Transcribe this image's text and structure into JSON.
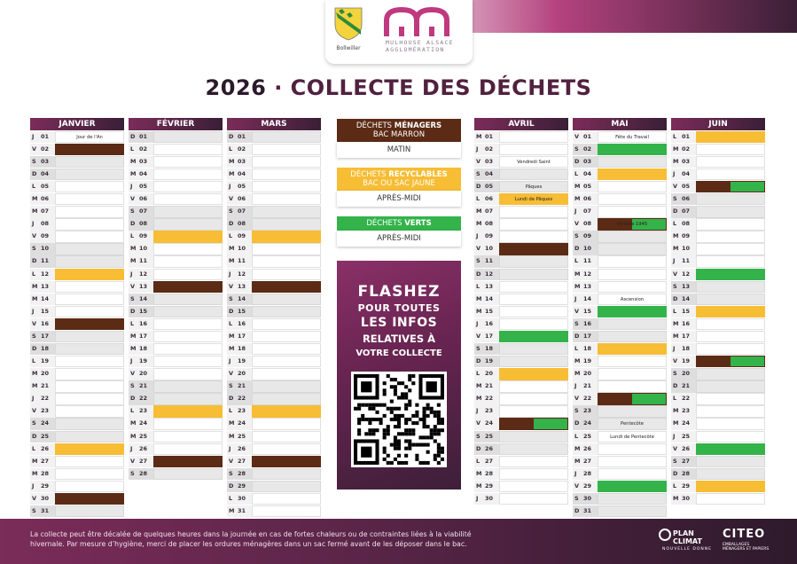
{
  "header": {
    "commune": "Bollwiller",
    "agglo_line1": "MULHOUSE ALSACE",
    "agglo_line2": "AGGLOMÉRATION",
    "year": "2026",
    "title": "· COLLECTE DES DÉCHETS"
  },
  "colors": {
    "menagers": "#5c2b15",
    "recyclables": "#f6bd35",
    "verts": "#33b34a",
    "brand": "#51213f"
  },
  "legend": {
    "menagers": {
      "prefix": "DÉCHETS ",
      "bold": "MÉNAGERS",
      "sub": "BAC MARRON",
      "time": "MATIN"
    },
    "recyclables": {
      "prefix": "DÉCHETS ",
      "bold": "RECYCLABLES",
      "sub": "BAC OU SAC JAUNE",
      "time": "APRÈS-MIDI"
    },
    "verts": {
      "prefix": "DÉCHETS ",
      "bold": "VERTS",
      "time": "APRÈS-MIDI"
    }
  },
  "flash": {
    "line1": "FLASHEZ",
    "line2": "POUR TOUTES",
    "line3": "LES INFOS",
    "line4": "RELATIVES À",
    "line5": "VOTRE COLLECTE"
  },
  "footer": {
    "line1": "La collecte peut être décalée de quelques heures dans la journée en cas de fortes chaleurs ou de contraintes liées à la viabilité",
    "line2": "hivernale. Par mesure d’hygiène, merci de placer les ordures ménagères dans un sac fermé avant de les déposer dans le bac.",
    "plan_line1": "PLAN",
    "plan_line2": "CLIMAT",
    "plan_sub": "NOUVELLE DONNE",
    "citeo": "CITEO",
    "citeo_sub1": "EMBALLAGES",
    "citeo_sub2": "MÉNAGERS ET PAPIERS"
  },
  "months": [
    {
      "name": "JANVIER",
      "days": [
        {
          "dl": "J",
          "dn": "01",
          "h": "Jour de l'An"
        },
        {
          "dl": "V",
          "dn": "02",
          "c": "brown"
        },
        {
          "dl": "S",
          "dn": "03"
        },
        {
          "dl": "D",
          "dn": "04"
        },
        {
          "dl": "L",
          "dn": "05"
        },
        {
          "dl": "M",
          "dn": "06"
        },
        {
          "dl": "M",
          "dn": "07"
        },
        {
          "dl": "J",
          "dn": "08"
        },
        {
          "dl": "V",
          "dn": "09"
        },
        {
          "dl": "S",
          "dn": "10"
        },
        {
          "dl": "D",
          "dn": "11"
        },
        {
          "dl": "L",
          "dn": "12",
          "c": "yellow"
        },
        {
          "dl": "M",
          "dn": "13"
        },
        {
          "dl": "M",
          "dn": "14"
        },
        {
          "dl": "J",
          "dn": "15"
        },
        {
          "dl": "V",
          "dn": "16",
          "c": "brown"
        },
        {
          "dl": "S",
          "dn": "17"
        },
        {
          "dl": "D",
          "dn": "18"
        },
        {
          "dl": "L",
          "dn": "19"
        },
        {
          "dl": "M",
          "dn": "20"
        },
        {
          "dl": "M",
          "dn": "21"
        },
        {
          "dl": "J",
          "dn": "22"
        },
        {
          "dl": "V",
          "dn": "23"
        },
        {
          "dl": "S",
          "dn": "24"
        },
        {
          "dl": "D",
          "dn": "25"
        },
        {
          "dl": "L",
          "dn": "26",
          "c": "yellow"
        },
        {
          "dl": "M",
          "dn": "27"
        },
        {
          "dl": "M",
          "dn": "28"
        },
        {
          "dl": "J",
          "dn": "29"
        },
        {
          "dl": "V",
          "dn": "30",
          "c": "brown"
        },
        {
          "dl": "S",
          "dn": "31"
        }
      ]
    },
    {
      "name": "FÉVRIER",
      "days": [
        {
          "dl": "D",
          "dn": "01"
        },
        {
          "dl": "L",
          "dn": "02"
        },
        {
          "dl": "M",
          "dn": "03"
        },
        {
          "dl": "M",
          "dn": "04"
        },
        {
          "dl": "J",
          "dn": "05"
        },
        {
          "dl": "V",
          "dn": "06"
        },
        {
          "dl": "S",
          "dn": "07"
        },
        {
          "dl": "D",
          "dn": "08"
        },
        {
          "dl": "L",
          "dn": "09",
          "c": "yellow"
        },
        {
          "dl": "M",
          "dn": "10"
        },
        {
          "dl": "M",
          "dn": "11"
        },
        {
          "dl": "J",
          "dn": "12"
        },
        {
          "dl": "V",
          "dn": "13",
          "c": "brown"
        },
        {
          "dl": "S",
          "dn": "14"
        },
        {
          "dl": "D",
          "dn": "15"
        },
        {
          "dl": "L",
          "dn": "16"
        },
        {
          "dl": "M",
          "dn": "17"
        },
        {
          "dl": "M",
          "dn": "18"
        },
        {
          "dl": "J",
          "dn": "19"
        },
        {
          "dl": "V",
          "dn": "20"
        },
        {
          "dl": "S",
          "dn": "21"
        },
        {
          "dl": "D",
          "dn": "22"
        },
        {
          "dl": "L",
          "dn": "23",
          "c": "yellow"
        },
        {
          "dl": "M",
          "dn": "24"
        },
        {
          "dl": "M",
          "dn": "25"
        },
        {
          "dl": "J",
          "dn": "26"
        },
        {
          "dl": "V",
          "dn": "27",
          "c": "brown"
        },
        {
          "dl": "S",
          "dn": "28"
        }
      ]
    },
    {
      "name": "MARS",
      "days": [
        {
          "dl": "D",
          "dn": "01"
        },
        {
          "dl": "L",
          "dn": "02"
        },
        {
          "dl": "M",
          "dn": "03"
        },
        {
          "dl": "M",
          "dn": "04"
        },
        {
          "dl": "J",
          "dn": "05"
        },
        {
          "dl": "V",
          "dn": "06"
        },
        {
          "dl": "S",
          "dn": "07"
        },
        {
          "dl": "D",
          "dn": "08"
        },
        {
          "dl": "L",
          "dn": "09",
          "c": "yellow"
        },
        {
          "dl": "M",
          "dn": "10"
        },
        {
          "dl": "M",
          "dn": "11"
        },
        {
          "dl": "J",
          "dn": "12"
        },
        {
          "dl": "V",
          "dn": "13",
          "c": "brown"
        },
        {
          "dl": "S",
          "dn": "14"
        },
        {
          "dl": "D",
          "dn": "15"
        },
        {
          "dl": "L",
          "dn": "16"
        },
        {
          "dl": "M",
          "dn": "17"
        },
        {
          "dl": "M",
          "dn": "18"
        },
        {
          "dl": "J",
          "dn": "19"
        },
        {
          "dl": "V",
          "dn": "20"
        },
        {
          "dl": "S",
          "dn": "21"
        },
        {
          "dl": "D",
          "dn": "22"
        },
        {
          "dl": "L",
          "dn": "23",
          "c": "yellow"
        },
        {
          "dl": "M",
          "dn": "24"
        },
        {
          "dl": "M",
          "dn": "25"
        },
        {
          "dl": "J",
          "dn": "26"
        },
        {
          "dl": "V",
          "dn": "27",
          "c": "brown"
        },
        {
          "dl": "S",
          "dn": "28"
        },
        {
          "dl": "D",
          "dn": "29"
        },
        {
          "dl": "L",
          "dn": "30"
        },
        {
          "dl": "M",
          "dn": "31"
        }
      ]
    },
    {
      "name": "AVRIL",
      "days": [
        {
          "dl": "M",
          "dn": "01"
        },
        {
          "dl": "J",
          "dn": "02"
        },
        {
          "dl": "V",
          "dn": "03",
          "h": "Vendredi Saint"
        },
        {
          "dl": "S",
          "dn": "04"
        },
        {
          "dl": "D",
          "dn": "05",
          "h": "Pâques"
        },
        {
          "dl": "L",
          "dn": "06",
          "h": "Lundi de Pâques",
          "c": "yellow"
        },
        {
          "dl": "M",
          "dn": "07"
        },
        {
          "dl": "M",
          "dn": "08"
        },
        {
          "dl": "J",
          "dn": "09"
        },
        {
          "dl": "V",
          "dn": "10",
          "c": "brown"
        },
        {
          "dl": "S",
          "dn": "11"
        },
        {
          "dl": "D",
          "dn": "12"
        },
        {
          "dl": "L",
          "dn": "13"
        },
        {
          "dl": "M",
          "dn": "14"
        },
        {
          "dl": "M",
          "dn": "15"
        },
        {
          "dl": "J",
          "dn": "16"
        },
        {
          "dl": "V",
          "dn": "17",
          "c": "green"
        },
        {
          "dl": "S",
          "dn": "18"
        },
        {
          "dl": "D",
          "dn": "19"
        },
        {
          "dl": "L",
          "dn": "20",
          "c": "yellow"
        },
        {
          "dl": "M",
          "dn": "21"
        },
        {
          "dl": "M",
          "dn": "22"
        },
        {
          "dl": "J",
          "dn": "23"
        },
        {
          "dl": "V",
          "dn": "24",
          "c": "split"
        },
        {
          "dl": "S",
          "dn": "25"
        },
        {
          "dl": "D",
          "dn": "26"
        },
        {
          "dl": "L",
          "dn": "27"
        },
        {
          "dl": "M",
          "dn": "28"
        },
        {
          "dl": "M",
          "dn": "29"
        },
        {
          "dl": "J",
          "dn": "30"
        }
      ]
    },
    {
      "name": "MAI",
      "days": [
        {
          "dl": "V",
          "dn": "01",
          "h": "Fête du Travail"
        },
        {
          "dl": "S",
          "dn": "02",
          "c": "green"
        },
        {
          "dl": "D",
          "dn": "03"
        },
        {
          "dl": "L",
          "dn": "04",
          "c": "yellow"
        },
        {
          "dl": "M",
          "dn": "05"
        },
        {
          "dl": "M",
          "dn": "06"
        },
        {
          "dl": "J",
          "dn": "07"
        },
        {
          "dl": "V",
          "dn": "08",
          "h": "Victoire 1945",
          "c": "split"
        },
        {
          "dl": "S",
          "dn": "09"
        },
        {
          "dl": "D",
          "dn": "10"
        },
        {
          "dl": "L",
          "dn": "11"
        },
        {
          "dl": "M",
          "dn": "12"
        },
        {
          "dl": "M",
          "dn": "13"
        },
        {
          "dl": "J",
          "dn": "14",
          "h": "Ascension"
        },
        {
          "dl": "V",
          "dn": "15",
          "c": "green"
        },
        {
          "dl": "S",
          "dn": "16"
        },
        {
          "dl": "D",
          "dn": "17"
        },
        {
          "dl": "L",
          "dn": "18",
          "c": "yellow"
        },
        {
          "dl": "M",
          "dn": "19"
        },
        {
          "dl": "M",
          "dn": "20"
        },
        {
          "dl": "J",
          "dn": "21"
        },
        {
          "dl": "V",
          "dn": "22",
          "c": "split"
        },
        {
          "dl": "S",
          "dn": "23"
        },
        {
          "dl": "D",
          "dn": "24",
          "h": "Pentecôte"
        },
        {
          "dl": "L",
          "dn": "25",
          "h": "Lundi de Pentecôte"
        },
        {
          "dl": "M",
          "dn": "26"
        },
        {
          "dl": "M",
          "dn": "27"
        },
        {
          "dl": "J",
          "dn": "28"
        },
        {
          "dl": "V",
          "dn": "29",
          "c": "green"
        },
        {
          "dl": "S",
          "dn": "30"
        },
        {
          "dl": "D",
          "dn": "31"
        }
      ]
    },
    {
      "name": "JUIN",
      "days": [
        {
          "dl": "L",
          "dn": "01",
          "c": "yellow"
        },
        {
          "dl": "M",
          "dn": "02"
        },
        {
          "dl": "M",
          "dn": "03"
        },
        {
          "dl": "J",
          "dn": "04"
        },
        {
          "dl": "V",
          "dn": "05",
          "c": "split"
        },
        {
          "dl": "S",
          "dn": "06"
        },
        {
          "dl": "D",
          "dn": "07"
        },
        {
          "dl": "L",
          "dn": "08"
        },
        {
          "dl": "M",
          "dn": "09"
        },
        {
          "dl": "M",
          "dn": "10"
        },
        {
          "dl": "J",
          "dn": "11"
        },
        {
          "dl": "V",
          "dn": "12",
          "c": "green"
        },
        {
          "dl": "S",
          "dn": "13"
        },
        {
          "dl": "D",
          "dn": "14"
        },
        {
          "dl": "L",
          "dn": "15",
          "c": "yellow"
        },
        {
          "dl": "M",
          "dn": "16"
        },
        {
          "dl": "M",
          "dn": "17"
        },
        {
          "dl": "J",
          "dn": "18"
        },
        {
          "dl": "V",
          "dn": "19",
          "c": "split"
        },
        {
          "dl": "S",
          "dn": "20"
        },
        {
          "dl": "D",
          "dn": "21"
        },
        {
          "dl": "L",
          "dn": "22"
        },
        {
          "dl": "M",
          "dn": "23"
        },
        {
          "dl": "M",
          "dn": "24"
        },
        {
          "dl": "J",
          "dn": "25"
        },
        {
          "dl": "V",
          "dn": "26",
          "c": "green"
        },
        {
          "dl": "S",
          "dn": "27"
        },
        {
          "dl": "D",
          "dn": "28"
        },
        {
          "dl": "L",
          "dn": "29",
          "c": "yellow"
        },
        {
          "dl": "M",
          "dn": "30"
        }
      ]
    }
  ]
}
